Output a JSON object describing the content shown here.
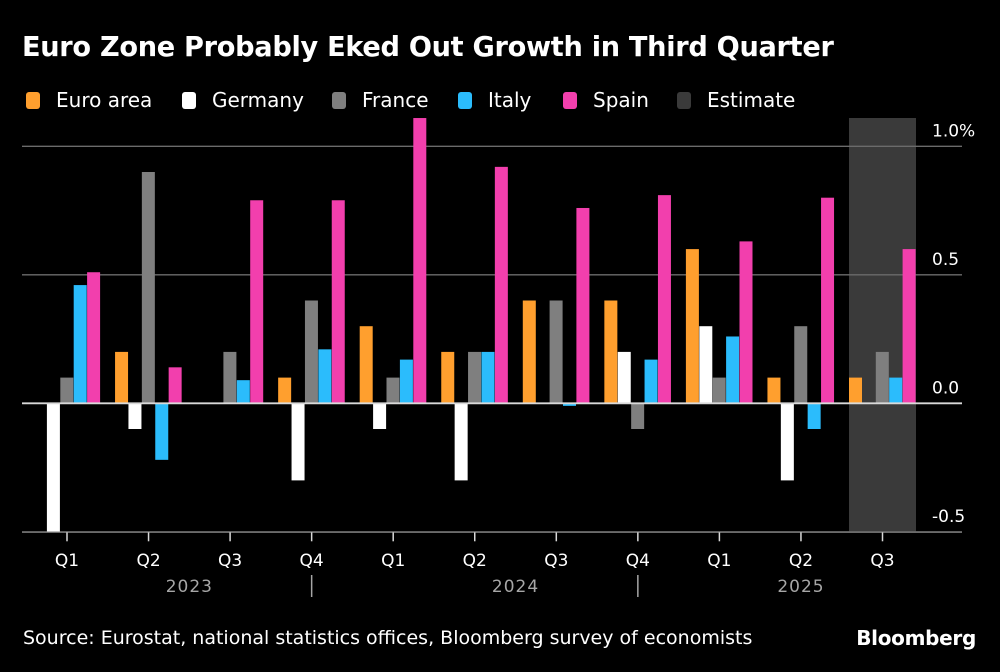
{
  "title": "Euro Zone Probably Eked Out Growth in Third Quarter",
  "source": "Source: Eurostat, national statistics offices, Bloomberg survey of economists",
  "brand": "Bloomberg",
  "legend": [
    {
      "label": "Euro area",
      "color": "#ff9f2e"
    },
    {
      "label": "Germany",
      "color": "#ffffff"
    },
    {
      "label": "France",
      "color": "#7f7f7f"
    },
    {
      "label": "Italy",
      "color": "#2bbcfc"
    },
    {
      "label": "Spain",
      "color": "#f23fad"
    },
    {
      "label": "Estimate",
      "color": "#3a3a3a"
    }
  ],
  "chart_data": {
    "type": "bar",
    "title": "Euro Zone Probably Eked Out Growth in Third Quarter",
    "xlabel": "",
    "ylabel": "",
    "ylim": [
      -0.5,
      1.05
    ],
    "yticks": [
      -0.5,
      0.0,
      0.5,
      1.0
    ],
    "ytick_labels": [
      "-0.5",
      "0.0",
      "0.5",
      "1.0%"
    ],
    "grid": true,
    "legend_position": "top-left",
    "categories": [
      "Q1",
      "Q2",
      "Q3",
      "Q4",
      "Q1",
      "Q2",
      "Q3",
      "Q4",
      "Q1",
      "Q2",
      "Q3"
    ],
    "year_groups": [
      {
        "label": "2023",
        "start": 0,
        "end": 3
      },
      {
        "label": "2024",
        "start": 4,
        "end": 7
      },
      {
        "label": "2025",
        "start": 8,
        "end": 10
      }
    ],
    "estimate_categories": [
      10
    ],
    "series": [
      {
        "name": "Euro area",
        "color": "#ff9f2e",
        "values": [
          0.0,
          0.2,
          0.0,
          0.1,
          0.3,
          0.2,
          0.4,
          0.4,
          0.6,
          0.1,
          0.1
        ]
      },
      {
        "name": "Germany",
        "color": "#ffffff",
        "values": [
          -0.5,
          -0.1,
          0.0,
          -0.3,
          -0.1,
          -0.3,
          0.0,
          0.2,
          0.3,
          -0.3,
          0.0
        ]
      },
      {
        "name": "France",
        "color": "#7f7f7f",
        "values": [
          0.1,
          0.9,
          0.2,
          0.4,
          0.1,
          0.2,
          0.4,
          -0.1,
          0.1,
          0.3,
          0.2
        ]
      },
      {
        "name": "Italy",
        "color": "#2bbcfc",
        "values": [
          0.46,
          -0.22,
          0.09,
          0.21,
          0.17,
          0.2,
          -0.01,
          0.17,
          0.26,
          -0.1,
          0.1
        ]
      },
      {
        "name": "Spain",
        "color": "#f23fad",
        "values": [
          0.51,
          0.14,
          0.79,
          0.79,
          1.11,
          0.92,
          0.76,
          0.81,
          0.63,
          0.8,
          0.6
        ]
      }
    ]
  }
}
